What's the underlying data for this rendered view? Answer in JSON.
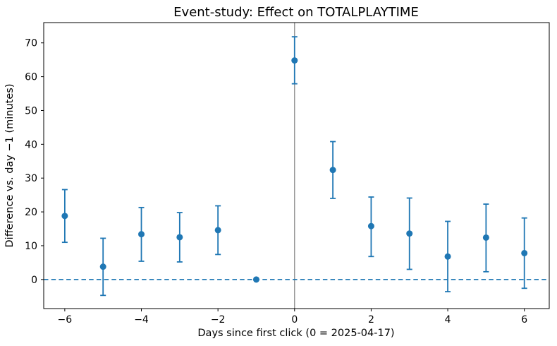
{
  "chart_data": {
    "type": "scatter",
    "subtype": "event-study-errorbar",
    "title": "Event-study: Effect on TOTALPLAYTIME",
    "xlabel": "Days since first click (0 = 2025-04-17)",
    "ylabel": "Difference vs. day −1 (minutes)",
    "x": [
      -6,
      -5,
      -4,
      -3,
      -2,
      -1,
      0,
      1,
      2,
      3,
      4,
      5,
      6
    ],
    "y": [
      18.8,
      3.8,
      13.4,
      12.5,
      14.6,
      0.0,
      64.8,
      32.4,
      15.8,
      13.6,
      6.8,
      12.4,
      7.8
    ],
    "ci_low": [
      11.0,
      -4.7,
      5.4,
      5.2,
      7.4,
      0.0,
      57.9,
      24.0,
      6.8,
      3.0,
      -3.6,
      2.3,
      -2.6
    ],
    "ci_high": [
      26.6,
      12.2,
      21.3,
      19.8,
      21.8,
      0.0,
      71.8,
      40.8,
      24.4,
      24.1,
      17.2,
      22.3,
      18.2
    ],
    "baseline_day": -1,
    "xticks": [
      -6,
      -4,
      -2,
      0,
      2,
      4,
      6
    ],
    "xtick_labels": [
      "−6",
      "−4",
      "−2",
      "0",
      "2",
      "4",
      "6"
    ],
    "yticks": [
      0,
      10,
      20,
      30,
      40,
      50,
      60,
      70
    ],
    "ytick_labels": [
      "0",
      "10",
      "20",
      "30",
      "40",
      "50",
      "60",
      "70"
    ],
    "xlim": [
      -6.55,
      6.65
    ],
    "ylim": [
      -8.6,
      76.0
    ],
    "grid": false,
    "legend": "none",
    "point_color": "#1f77b4",
    "zero_line": {
      "y": 0,
      "style": "dashed",
      "color": "#1f77b4"
    },
    "event_line": {
      "x": 0,
      "style": "solid",
      "color": "#888888"
    },
    "frame_color": "#000000",
    "background": "#ffffff"
  }
}
